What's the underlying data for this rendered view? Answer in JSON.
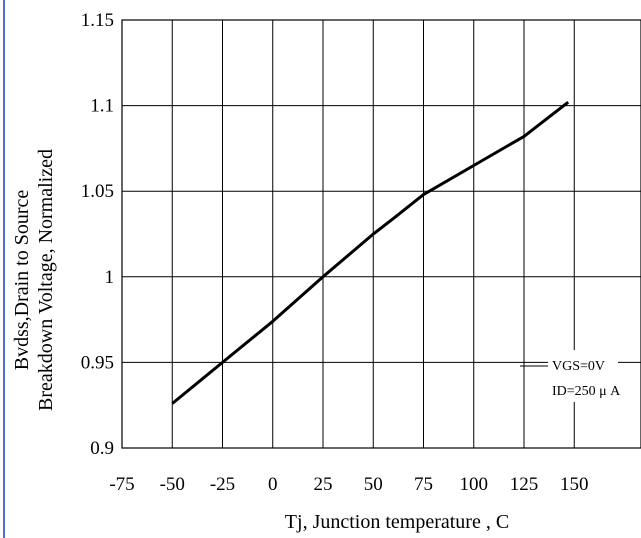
{
  "chart_data": {
    "type": "line",
    "title": "",
    "xlabel": "Tj, Junction temperature , C",
    "ylabel_lines": [
      "Bvdss,Drain to Source",
      "Breakdown Voltage, Normalized"
    ],
    "xlim": [
      -75,
      150
    ],
    "ylim": [
      0.9,
      1.15
    ],
    "x_ticks": [
      "-75",
      "-50",
      "-25",
      "0",
      "25",
      "50",
      "75",
      "100",
      "125",
      "150"
    ],
    "y_ticks": [
      "1.15",
      "1.1",
      "1.05",
      "1",
      "0.95",
      "0.9"
    ],
    "grid": true,
    "legend": {
      "placement": "bottom-right",
      "lines": [
        "VGS=0V",
        "ID=250 μ A"
      ]
    },
    "series": [
      {
        "x": [
          -50,
          -25,
          0,
          25,
          50,
          60,
          75,
          100,
          125,
          147
        ],
        "y": [
          0.926,
          0.95,
          0.974,
          1.0,
          1.025,
          1.034,
          1.048,
          1.065,
          1.082,
          1.102
        ]
      }
    ]
  }
}
